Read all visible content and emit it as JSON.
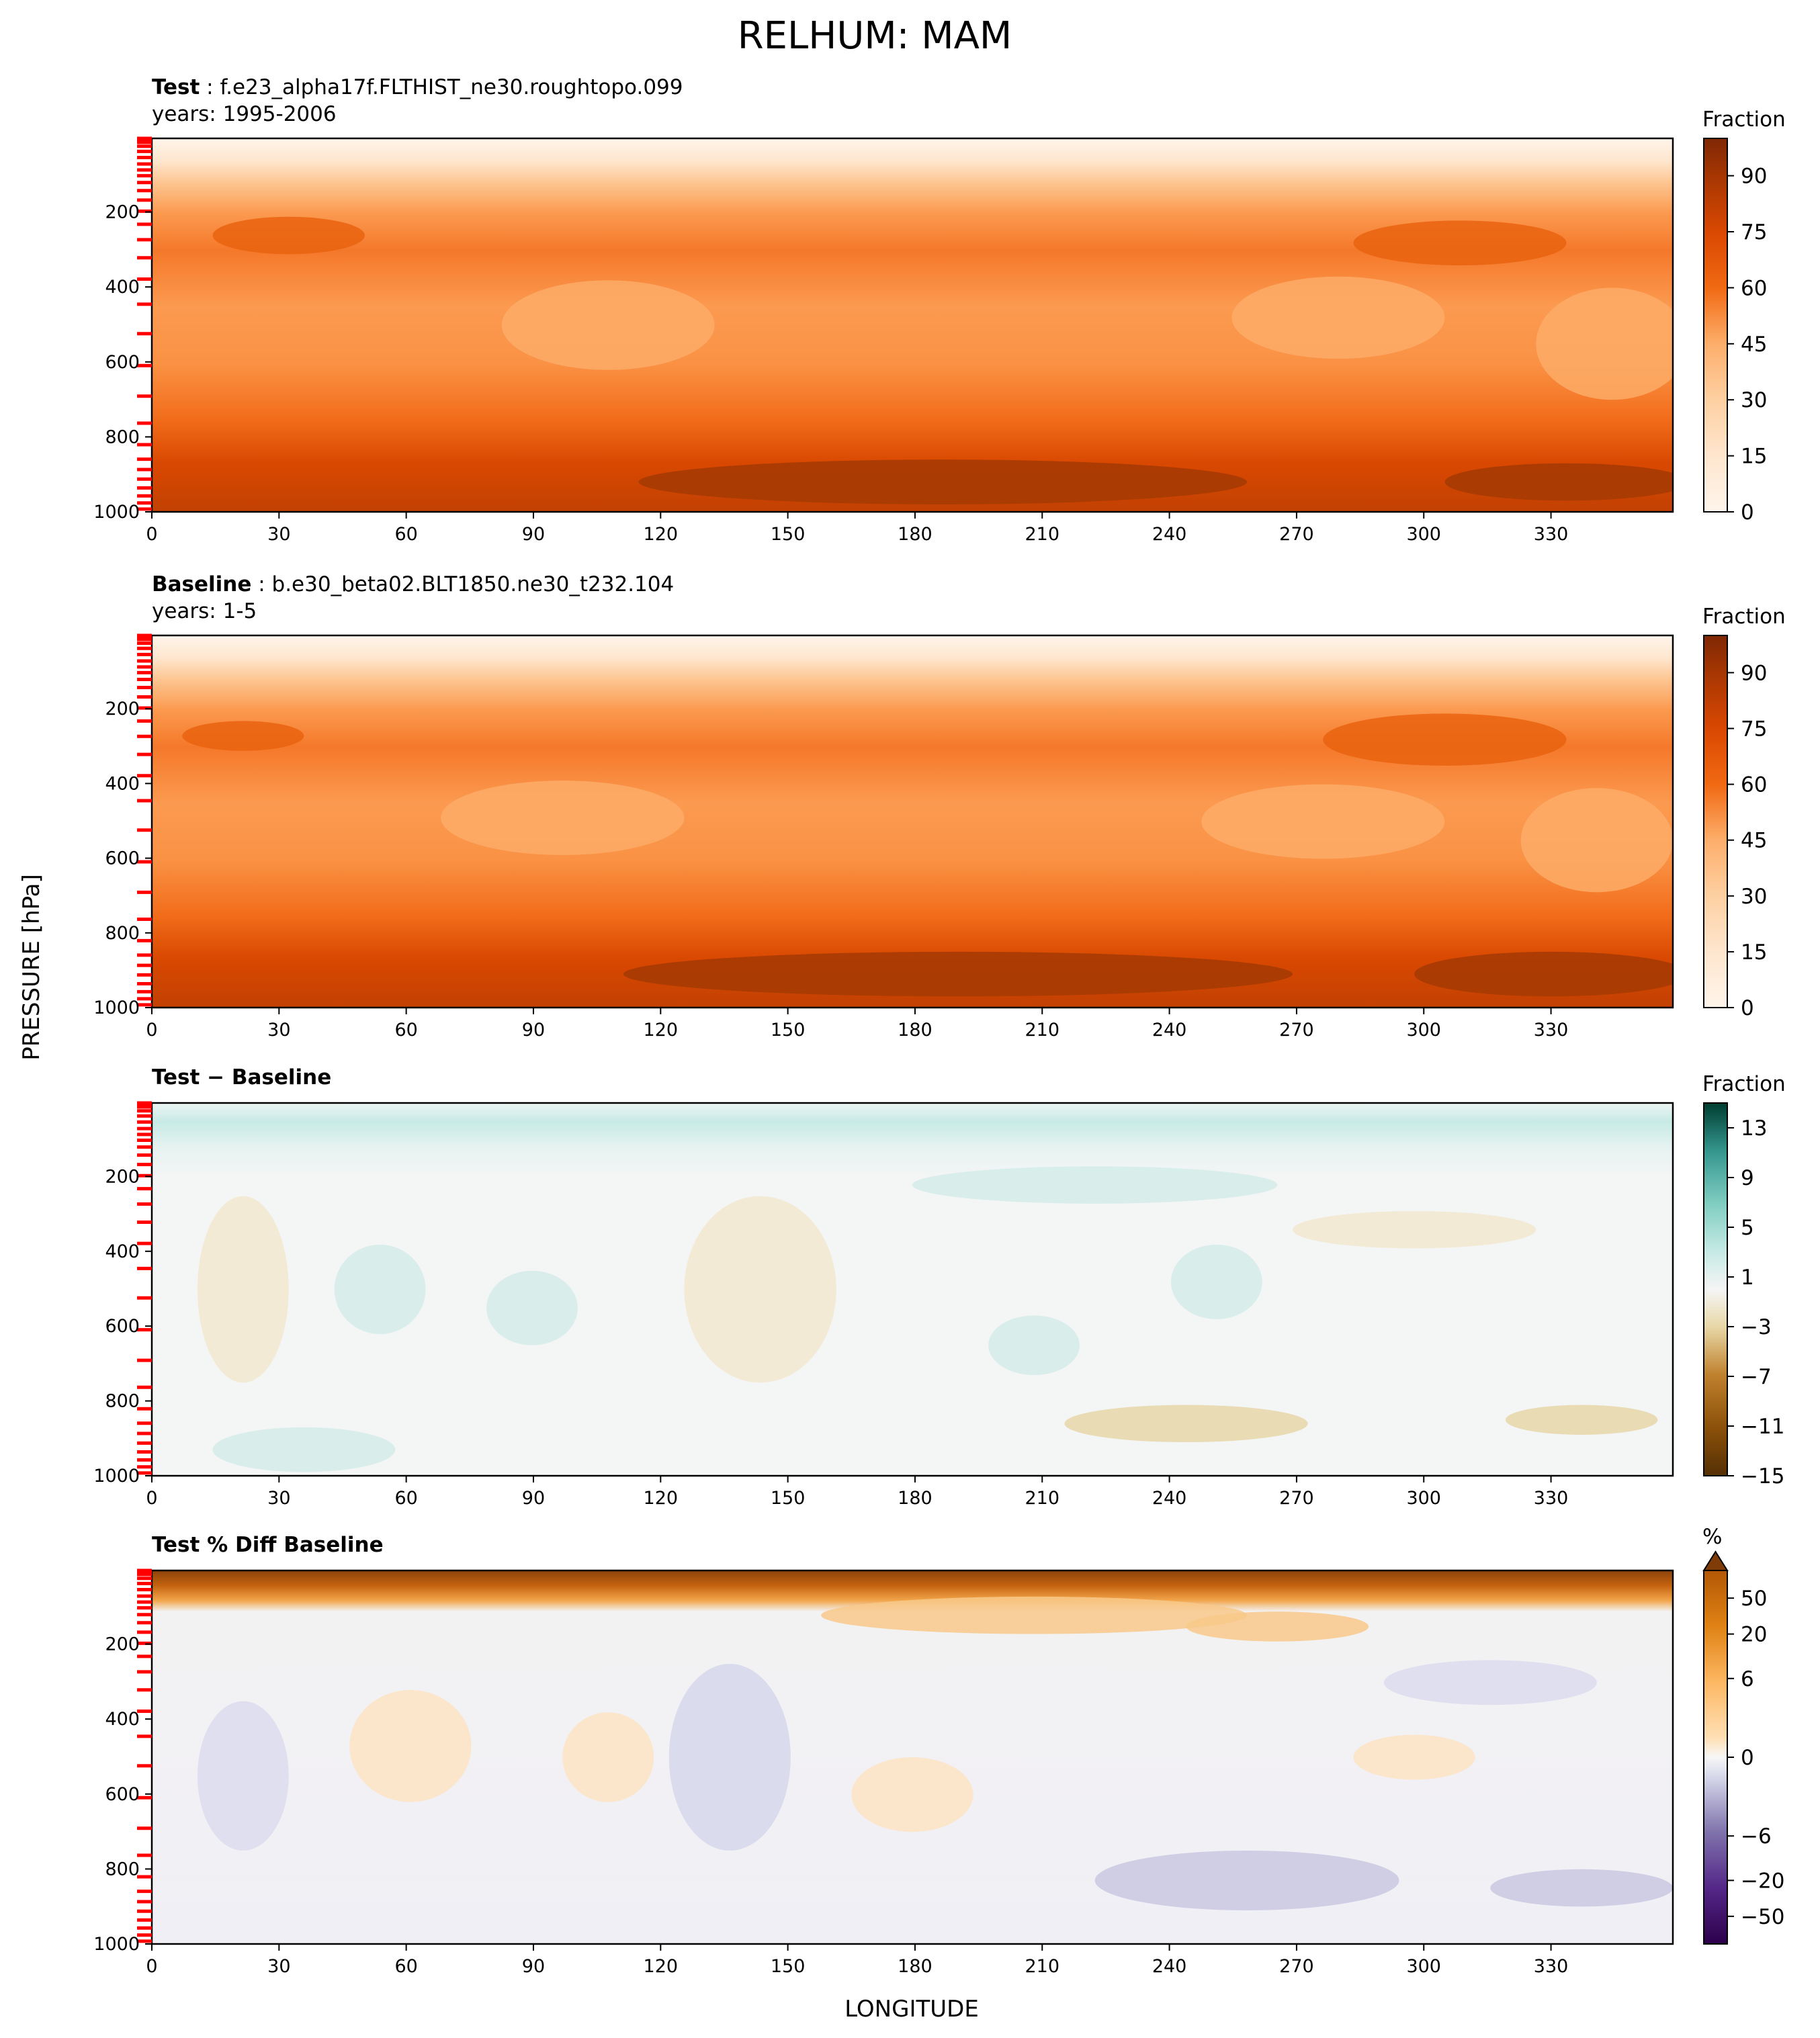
{
  "figure": {
    "title": "RELHUM: MAM",
    "ylabel": "PRESSURE [hPa]",
    "xlabel": "LONGITUDE"
  },
  "chart_data": [
    {
      "type": "heatmap",
      "id": "test",
      "title_bold": "Test",
      "title_rest": ": f.e23_alpha17f.FLTHIST_ne30.roughtopo.099",
      "subtitle": "years: 1995-2006",
      "x_ticks": [
        0,
        30,
        60,
        90,
        120,
        150,
        180,
        210,
        240,
        270,
        300,
        330
      ],
      "x_tick_labels": [
        "0",
        "30",
        "60",
        "90",
        "120",
        "150",
        "180",
        "210",
        "240",
        "270",
        "300",
        "330"
      ],
      "xlim": [
        0,
        358.75
      ],
      "y_ticks": [
        200,
        400,
        600,
        800,
        1000
      ],
      "y_tick_labels": [
        "200",
        "400",
        "600",
        "800",
        "1000"
      ],
      "ylim": [
        1000,
        3.6
      ],
      "colorbar": {
        "label": "Fraction",
        "ticks": [
          0,
          15,
          30,
          45,
          60,
          75,
          90
        ],
        "tick_labels": [
          "0",
          "15",
          "30",
          "45",
          "60",
          "75",
          "90"
        ],
        "range": [
          0,
          100
        ]
      }
    },
    {
      "type": "heatmap",
      "id": "baseline",
      "title_bold": "Baseline",
      "title_rest": ": b.e30_beta02.BLT1850.ne30_t232.104",
      "subtitle": "years: 1-5",
      "x_ticks": [
        0,
        30,
        60,
        90,
        120,
        150,
        180,
        210,
        240,
        270,
        300,
        330
      ],
      "x_tick_labels": [
        "0",
        "30",
        "60",
        "90",
        "120",
        "150",
        "180",
        "210",
        "240",
        "270",
        "300",
        "330"
      ],
      "xlim": [
        0,
        358.75
      ],
      "y_ticks": [
        200,
        400,
        600,
        800,
        1000
      ],
      "y_tick_labels": [
        "200",
        "400",
        "600",
        "800",
        "1000"
      ],
      "ylim": [
        1000,
        3.6
      ],
      "colorbar": {
        "label": "Fraction",
        "ticks": [
          0,
          15,
          30,
          45,
          60,
          75,
          90
        ],
        "tick_labels": [
          "0",
          "15",
          "30",
          "45",
          "60",
          "75",
          "90"
        ],
        "range": [
          0,
          100
        ]
      }
    },
    {
      "type": "heatmap",
      "id": "diff",
      "title_bold": "Test − Baseline",
      "title_rest": "",
      "subtitle": "",
      "x_ticks": [
        0,
        30,
        60,
        90,
        120,
        150,
        180,
        210,
        240,
        270,
        300,
        330
      ],
      "x_tick_labels": [
        "0",
        "30",
        "60",
        "90",
        "120",
        "150",
        "180",
        "210",
        "240",
        "270",
        "300",
        "330"
      ],
      "xlim": [
        0,
        358.75
      ],
      "y_ticks": [
        200,
        400,
        600,
        800,
        1000
      ],
      "y_tick_labels": [
        "200",
        "400",
        "600",
        "800",
        "1000"
      ],
      "ylim": [
        1000,
        3.6
      ],
      "colorbar": {
        "label": "Fraction",
        "ticks": [
          13,
          9,
          5,
          1,
          -3,
          -7,
          -11,
          -15
        ],
        "tick_labels": [
          "13",
          "9",
          "5",
          "1",
          "−3",
          "−7",
          "−11",
          "−15"
        ],
        "range": [
          -15,
          15
        ]
      }
    },
    {
      "type": "heatmap",
      "id": "pctdiff",
      "title_bold": "Test % Diff Baseline",
      "title_rest": "",
      "subtitle": "",
      "x_ticks": [
        0,
        30,
        60,
        90,
        120,
        150,
        180,
        210,
        240,
        270,
        300,
        330
      ],
      "x_tick_labels": [
        "0",
        "30",
        "60",
        "90",
        "120",
        "150",
        "180",
        "210",
        "240",
        "270",
        "300",
        "330"
      ],
      "xlim": [
        0,
        358.75
      ],
      "y_ticks": [
        200,
        400,
        600,
        800,
        1000
      ],
      "y_tick_labels": [
        "200",
        "400",
        "600",
        "800",
        "1000"
      ],
      "ylim": [
        1000,
        3.6
      ],
      "colorbar": {
        "label": "%",
        "ticks": [
          50,
          20,
          6,
          0,
          -6,
          -20,
          -50
        ],
        "tick_labels": [
          "50",
          "20",
          "6",
          "0",
          "−6",
          "−20",
          "−50"
        ],
        "range": [
          -100,
          100
        ],
        "extend": "max"
      }
    }
  ],
  "model_level_marks_hPa": [
    3.6,
    7.6,
    14.4,
    24.6,
    38.3,
    54.6,
    72.0,
    87.8,
    103.3,
    121.5,
    142.9,
    168.2,
    197.9,
    232.8,
    273.9,
    322.2,
    379.1,
    445.99,
    524.7,
    609.8,
    691.4,
    763.4,
    820.9,
    859.5,
    887.0,
    912.6,
    936.2,
    957.5,
    976.3,
    992.6
  ]
}
